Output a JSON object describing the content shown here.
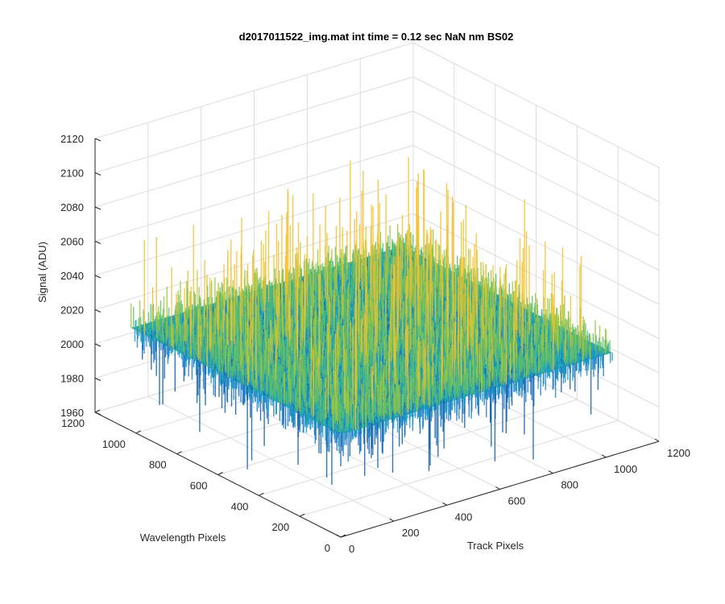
{
  "chart_data": {
    "type": "surface",
    "title": "d2017011522_img.mat int time = 0.12 sec  NaN nm BS02",
    "xlabel": "Track Pixels",
    "ylabel": "Wavelength Pixels",
    "zlabel": "Signal (ADU)",
    "xlim": [
      0,
      1200
    ],
    "ylim": [
      0,
      1200
    ],
    "zlim": [
      1960,
      2120
    ],
    "xticks": [
      "0",
      "200",
      "400",
      "600",
      "800",
      "1000",
      "1200"
    ],
    "yticks": [
      "0",
      "200",
      "400",
      "600",
      "800",
      "1000",
      "1200"
    ],
    "zticks": [
      "1960",
      "1980",
      "2000",
      "2020",
      "2040",
      "2060",
      "2080",
      "2100",
      "2120"
    ],
    "surface_summary": {
      "x_extent": [
        0,
        1024
      ],
      "y_extent": [
        0,
        1024
      ],
      "mean_signal": 2020,
      "min_signal": 1965,
      "max_signal": 2095
    },
    "grid": true,
    "colormap": "parula",
    "colors": {
      "low": "#1f7ac8",
      "mid": "#22b0ad",
      "high_mid": "#7fc45a",
      "high": "#f2c230"
    }
  }
}
